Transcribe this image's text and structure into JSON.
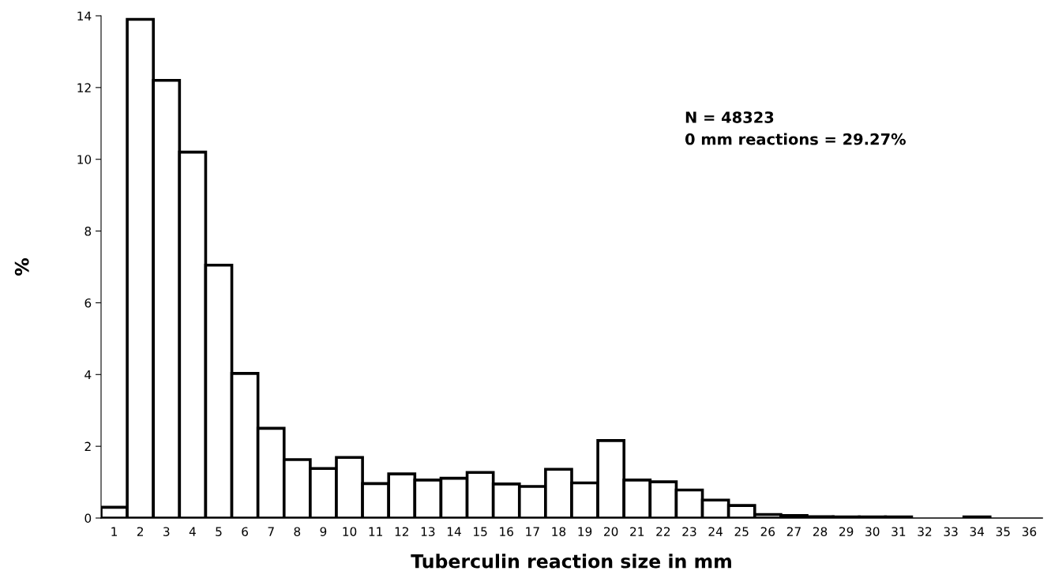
{
  "chart_data": {
    "type": "bar",
    "xlabel": "Tuberculin reaction size in mm",
    "ylabel": "%",
    "categories": [
      "1",
      "2",
      "3",
      "4",
      "5",
      "6",
      "7",
      "8",
      "9",
      "10",
      "11",
      "12",
      "13",
      "14",
      "15",
      "16",
      "17",
      "18",
      "19",
      "20",
      "21",
      "22",
      "23",
      "24",
      "25",
      "26",
      "27",
      "28",
      "29",
      "30",
      "31",
      "32",
      "33",
      "34",
      "35",
      "36"
    ],
    "values": [
      0.3,
      13.9,
      12.2,
      10.2,
      7.05,
      4.03,
      2.5,
      1.63,
      1.38,
      1.69,
      0.96,
      1.23,
      1.06,
      1.11,
      1.27,
      0.95,
      0.88,
      1.36,
      0.98,
      2.16,
      1.06,
      1.01,
      0.78,
      0.5,
      0.35,
      0.1,
      0.07,
      0.04,
      0.03,
      0.03,
      0.03,
      0,
      0,
      0.03,
      0,
      0
    ],
    "color": "#ffffff",
    "ylim": [
      0,
      14
    ],
    "yticks": [
      0,
      2,
      4,
      6,
      8,
      10,
      12,
      14
    ],
    "grid": false,
    "annotations": [
      "N = 48323\n0 mm reactions = 29.27%"
    ]
  }
}
